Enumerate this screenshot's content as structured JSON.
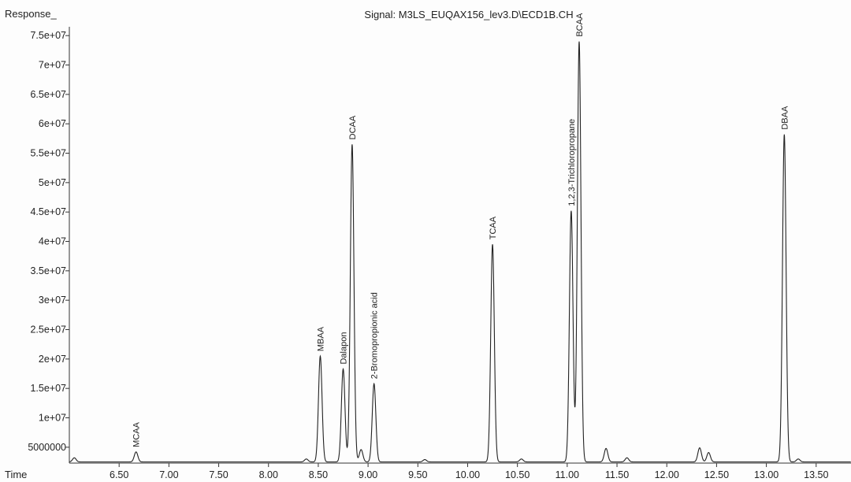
{
  "chart_data": {
    "type": "line",
    "title": "Signal: M3LS_EUQAX156_lev3.D\\ECD1B.CH",
    "ylabel": "Response_",
    "xlabel": "Time",
    "xlim": [
      6.0,
      13.85
    ],
    "ylim": [
      2300000,
      76500000
    ],
    "baseline": 2500000,
    "y_ticks": [
      {
        "value": 5000000,
        "label": "5000000"
      },
      {
        "value": 10000000,
        "label": "1e+07"
      },
      {
        "value": 15000000,
        "label": "1.5e+07"
      },
      {
        "value": 20000000,
        "label": "2e+07"
      },
      {
        "value": 25000000,
        "label": "2.5e+07"
      },
      {
        "value": 30000000,
        "label": "3e+07"
      },
      {
        "value": 35000000,
        "label": "3.5e+07"
      },
      {
        "value": 40000000,
        "label": "4e+07"
      },
      {
        "value": 45000000,
        "label": "4.5e+07"
      },
      {
        "value": 50000000,
        "label": "5e+07"
      },
      {
        "value": 55000000,
        "label": "5.5e+07"
      },
      {
        "value": 60000000,
        "label": "6e+07"
      },
      {
        "value": 65000000,
        "label": "6.5e+07"
      },
      {
        "value": 70000000,
        "label": "7e+07"
      },
      {
        "value": 75000000,
        "label": "7.5e+07"
      }
    ],
    "x_ticks": [
      {
        "value": 6.5,
        "label": "6.50"
      },
      {
        "value": 7.0,
        "label": "7.00"
      },
      {
        "value": 7.5,
        "label": "7.50"
      },
      {
        "value": 8.0,
        "label": "8.00"
      },
      {
        "value": 8.5,
        "label": "8.50"
      },
      {
        "value": 9.0,
        "label": "9.00"
      },
      {
        "value": 9.5,
        "label": "9.50"
      },
      {
        "value": 10.0,
        "label": "10.00"
      },
      {
        "value": 10.5,
        "label": "10.50"
      },
      {
        "value": 11.0,
        "label": "11.00"
      },
      {
        "value": 11.5,
        "label": "11.50"
      },
      {
        "value": 12.0,
        "label": "12.00"
      },
      {
        "value": 12.5,
        "label": "12.50"
      },
      {
        "value": 13.0,
        "label": "13.00"
      },
      {
        "value": 13.5,
        "label": "13.50"
      }
    ],
    "peaks": [
      {
        "name": "MCAA",
        "time": 6.67,
        "height": 4200000
      },
      {
        "name": "MBAA",
        "time": 8.52,
        "height": 20500000
      },
      {
        "name": "Dalapon",
        "time": 8.75,
        "height": 18300000
      },
      {
        "name": "DCAA",
        "time": 8.84,
        "height": 56500000
      },
      {
        "name": "2-Bromopropionic acid",
        "time": 9.06,
        "height": 15800000
      },
      {
        "name": "TCAA",
        "time": 10.25,
        "height": 39500000
      },
      {
        "name": "1,2,3-Trichloropropane",
        "time": 11.04,
        "height": 45200000
      },
      {
        "name": "BCAA",
        "time": 11.12,
        "height": 74000000
      },
      {
        "name": "DBAA",
        "time": 13.18,
        "height": 58200000
      }
    ],
    "minor_peaks": [
      {
        "time": 6.05,
        "height": 3200000
      },
      {
        "time": 8.38,
        "height": 3000000
      },
      {
        "time": 8.93,
        "height": 4600000
      },
      {
        "time": 9.57,
        "height": 2900000
      },
      {
        "time": 10.54,
        "height": 3000000
      },
      {
        "time": 11.39,
        "height": 4800000
      },
      {
        "time": 11.6,
        "height": 3200000
      },
      {
        "time": 12.33,
        "height": 4900000
      },
      {
        "time": 12.42,
        "height": 4100000
      },
      {
        "time": 13.32,
        "height": 3000000
      }
    ]
  }
}
